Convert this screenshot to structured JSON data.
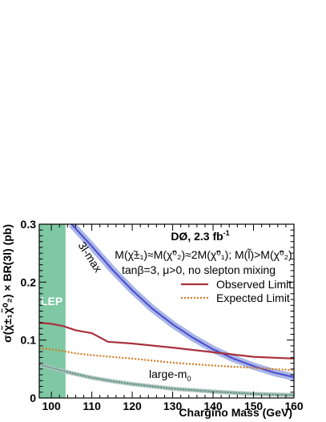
{
  "chart_data": {
    "type": "line",
    "title": "DØ, 2.3 fb",
    "title_superscript": "-1",
    "xlabel": "Chargino Mass (GeV)",
    "ylabel": "σ(χ̃±₁χ̃⁰₂) × BR(3l) (pb)",
    "xlim": [
      97,
      160
    ],
    "ylim": [
      0,
      0.3
    ],
    "x_ticks": [
      "100",
      "110",
      "120",
      "130",
      "140",
      "150",
      "160"
    ],
    "y_ticks": [
      "0",
      "0.1",
      "0.2",
      "0.3"
    ],
    "grid": false,
    "legend_position": "right",
    "annotation_lines": [
      "M(χ̃±₁)≈M(χ̃⁰₂)≈2M(χ̃⁰₁); M(l̃)>M(χ̃⁰₂)",
      "tanβ=3, μ>0, no slepton mixing"
    ],
    "lep_label": "LEP",
    "lep_excluded_range": [
      97,
      103.5
    ],
    "colors": {
      "observed": "#a8323e",
      "expected": "#d97a1e",
      "three_l_max": "#4a4ad0",
      "three_l_max_band": "#a9b6e6",
      "large_m0": "#4a7a70",
      "large_m0_band": "#a8c4bc",
      "lep": "#7ec8a4"
    },
    "series": [
      {
        "name": "Observed Limit",
        "style": "solid",
        "x": [
          97,
          100,
          103,
          106,
          110,
          114,
          120,
          130,
          140,
          150,
          160
        ],
        "y": [
          0.13,
          0.128,
          0.124,
          0.117,
          0.112,
          0.097,
          0.094,
          0.087,
          0.079,
          0.071,
          0.068
        ]
      },
      {
        "name": "Expected Limit",
        "style": "dotted",
        "x": [
          97,
          100,
          103,
          106,
          110,
          120,
          130,
          140,
          150,
          160
        ],
        "y": [
          0.086,
          0.084,
          0.081,
          0.077,
          0.074,
          0.068,
          0.061,
          0.056,
          0.052,
          0.048
        ]
      },
      {
        "name": "3l-max",
        "style": "band",
        "x": [
          105,
          110,
          115,
          120,
          125,
          130,
          135,
          140,
          145,
          150,
          155,
          160
        ],
        "y": [
          0.3,
          0.262,
          0.222,
          0.186,
          0.154,
          0.127,
          0.104,
          0.084,
          0.068,
          0.055,
          0.044,
          0.036
        ]
      },
      {
        "name": "large-m0",
        "style": "band",
        "x": [
          97,
          100,
          105,
          110,
          115,
          120,
          130,
          140,
          150,
          160
        ],
        "y": [
          0.058,
          0.052,
          0.043,
          0.035,
          0.029,
          0.024,
          0.016,
          0.011,
          0.007,
          0.005
        ]
      }
    ],
    "curve_labels": {
      "three_l_max": "3l-max",
      "large_m0": "large-m",
      "large_m0_sub": "0"
    }
  }
}
